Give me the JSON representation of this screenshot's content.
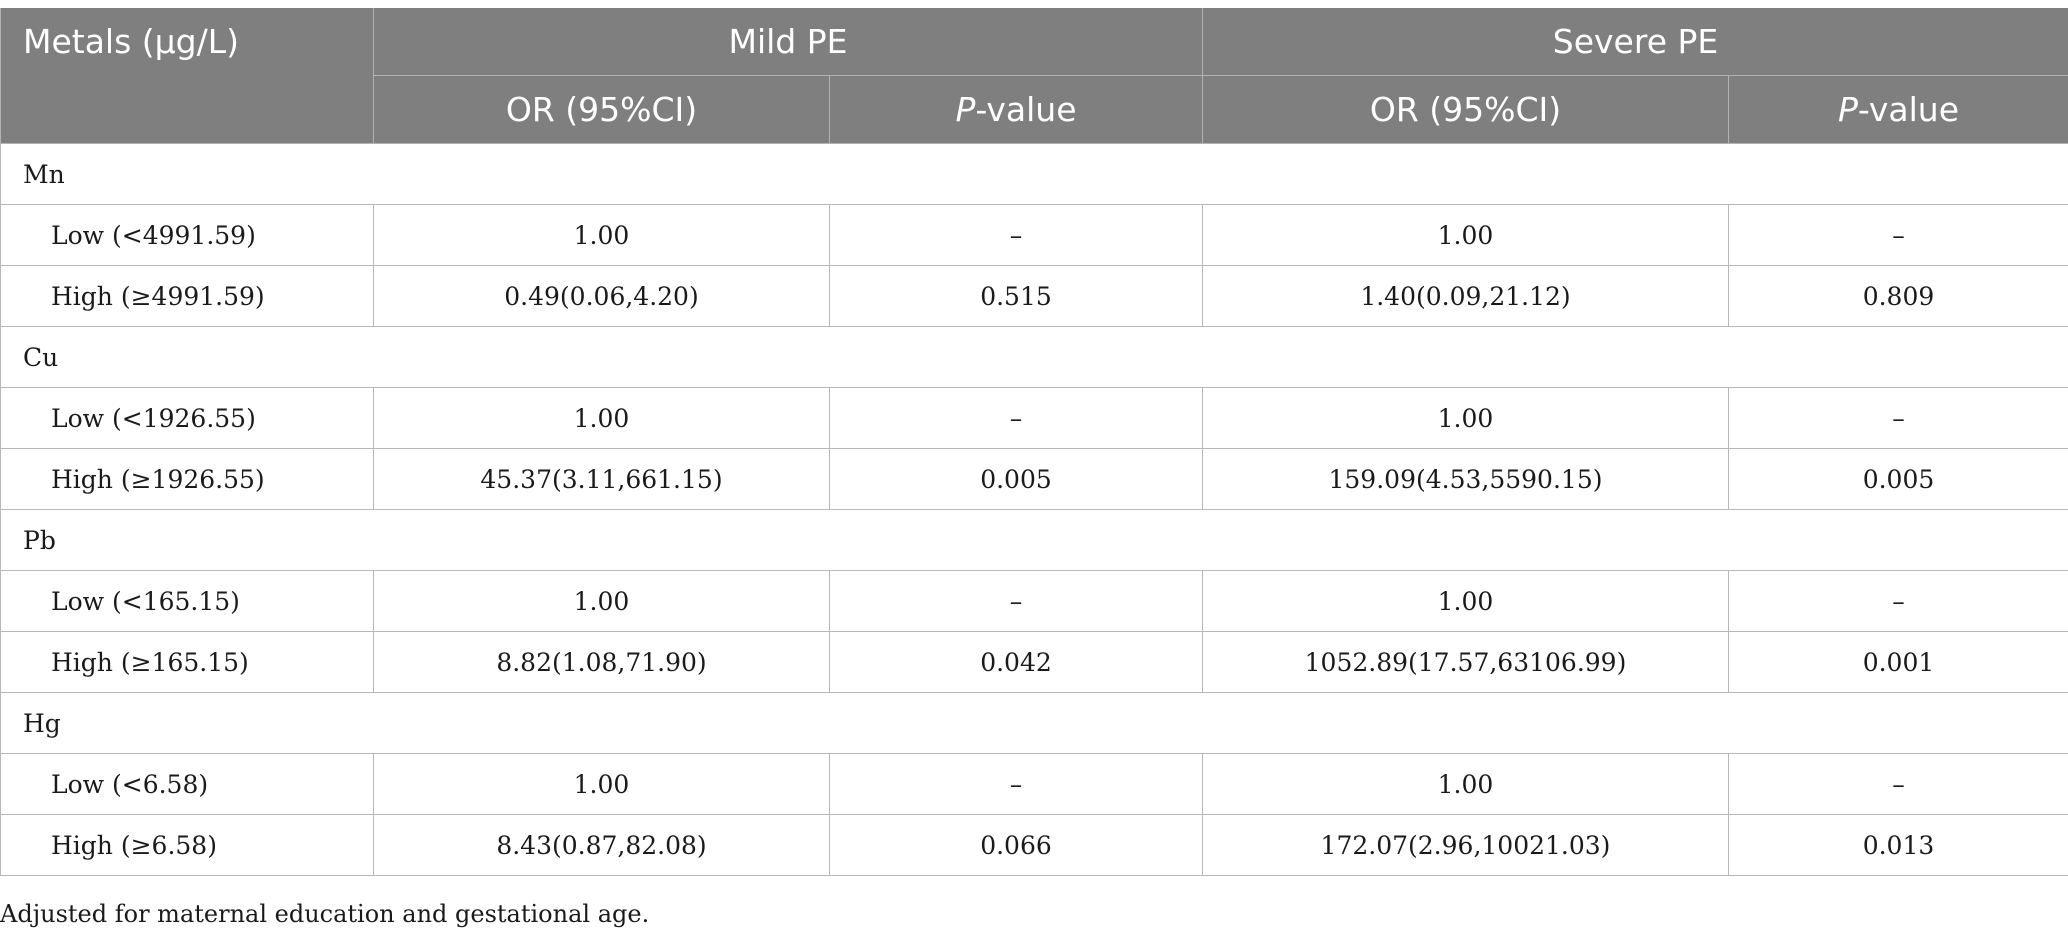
{
  "header": {
    "metals": "Metals (μg/L)",
    "mild_pe": "Mild PE",
    "severe_pe": "Severe PE",
    "or_label": "OR (95%CI)",
    "p_italic": "P",
    "p_rest": "-value"
  },
  "groups": [
    {
      "name": "Mn",
      "rows": [
        {
          "label": "Low (<4991.59)",
          "mild_or": "1.00",
          "mild_p": "–",
          "severe_or": "1.00",
          "severe_p": "–"
        },
        {
          "label": "High (≥4991.59)",
          "mild_or": "0.49(0.06,4.20)",
          "mild_p": "0.515",
          "severe_or": "1.40(0.09,21.12)",
          "severe_p": "0.809"
        }
      ]
    },
    {
      "name": "Cu",
      "rows": [
        {
          "label": "Low (<1926.55)",
          "mild_or": "1.00",
          "mild_p": "–",
          "severe_or": "1.00",
          "severe_p": "–"
        },
        {
          "label": "High (≥1926.55)",
          "mild_or": "45.37(3.11,661.15)",
          "mild_p": "0.005",
          "severe_or": "159.09(4.53,5590.15)",
          "severe_p": "0.005"
        }
      ]
    },
    {
      "name": "Pb",
      "rows": [
        {
          "label": "Low (<165.15)",
          "mild_or": "1.00",
          "mild_p": "–",
          "severe_or": "1.00",
          "severe_p": "–"
        },
        {
          "label": "High (≥165.15)",
          "mild_or": "8.82(1.08,71.90)",
          "mild_p": "0.042",
          "severe_or": "1052.89(17.57,63106.99)",
          "severe_p": "0.001"
        }
      ]
    },
    {
      "name": "Hg",
      "rows": [
        {
          "label": "Low (<6.58)",
          "mild_or": "1.00",
          "mild_p": "–",
          "severe_or": "1.00",
          "severe_p": "–"
        },
        {
          "label": "High (≥6.58)",
          "mild_or": "8.43(0.87,82.08)",
          "mild_p": "0.066",
          "severe_or": "172.07(2.96,10021.03)",
          "severe_p": "0.013"
        }
      ]
    }
  ],
  "footnote": "Adjusted for maternal education and gestational age."
}
